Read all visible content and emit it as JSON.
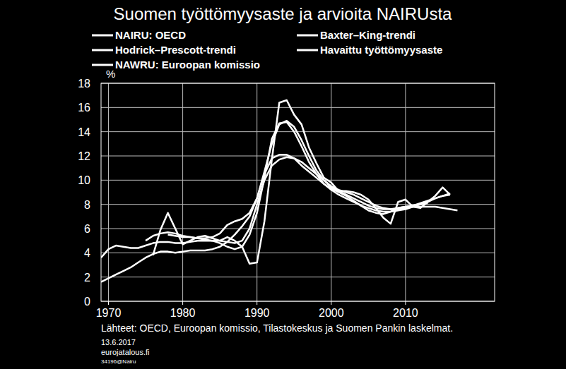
{
  "chart_data": {
    "type": "line",
    "title": "Suomen työttömyysaste ja arvioita NAIRUsta",
    "y_label": "%",
    "source": "Lähteet: OECD, Euroopan komissio, Tilastokeskus ja Suomen Pankin laskelmat.",
    "footer": [
      "13.6.2017",
      "eurojatalous.fi",
      "34196@Nairu"
    ],
    "x": [
      1969,
      1970,
      1971,
      1972,
      1973,
      1974,
      1975,
      1976,
      1977,
      1978,
      1979,
      1980,
      1981,
      1982,
      1983,
      1984,
      1985,
      1986,
      1987,
      1988,
      1989,
      1990,
      1991,
      1992,
      1993,
      1994,
      1995,
      1996,
      1997,
      1998,
      1999,
      2000,
      2001,
      2002,
      2003,
      2004,
      2005,
      2006,
      2007,
      2008,
      2009,
      2010,
      2011,
      2012,
      2013,
      2014,
      2015,
      2016,
      2017
    ],
    "series": [
      {
        "name": "NAIRU: OECD",
        "color": "#ffffff",
        "values": [
          3.6,
          4.3,
          4.6,
          4.5,
          4.4,
          4.4,
          4.6,
          4.8,
          4.9,
          4.9,
          4.8,
          4.8,
          4.9,
          5.0,
          5.0,
          5.0,
          5.0,
          4.9,
          4.8,
          5.0,
          6.0,
          8.0,
          10.0,
          11.2,
          11.7,
          11.9,
          11.8,
          11.5,
          11.0,
          10.5,
          10.0,
          9.5,
          9.2,
          9.0,
          8.8,
          8.5,
          8.2,
          7.9,
          7.7,
          7.6,
          7.6,
          7.7,
          7.8,
          7.8,
          7.8,
          7.8,
          7.7,
          7.6,
          7.5
        ]
      },
      {
        "name": "Baxter–King-trendi",
        "color": "#ffffff",
        "values": [
          null,
          null,
          null,
          null,
          null,
          null,
          null,
          null,
          null,
          5.5,
          5.4,
          5.3,
          5.3,
          5.2,
          5.1,
          5.0,
          4.8,
          4.5,
          4.3,
          4.5,
          5.5,
          7.3,
          10.2,
          13.4,
          14.7,
          14.8,
          14.0,
          12.8,
          11.5,
          10.5,
          9.7,
          9.3,
          9.0,
          8.7,
          8.3,
          7.9,
          7.5,
          7.3,
          7.2,
          7.4,
          7.7,
          7.8,
          7.9,
          8.0,
          8.1,
          null,
          null,
          null,
          null
        ]
      },
      {
        "name": "Hodrick–Prescott-trendi",
        "color": "#ffffff",
        "values": [
          null,
          null,
          null,
          null,
          null,
          null,
          5.0,
          5.4,
          5.6,
          5.7,
          5.6,
          5.4,
          5.3,
          5.2,
          5.2,
          5.3,
          5.6,
          6.3,
          6.6,
          6.8,
          7.3,
          8.5,
          10.7,
          13.0,
          14.6,
          14.9,
          14.4,
          13.3,
          12.0,
          10.8,
          10.0,
          9.4,
          9.1,
          8.8,
          8.5,
          8.2,
          7.9,
          7.7,
          7.6,
          7.6,
          7.7,
          7.8,
          7.9,
          8.1,
          8.3,
          8.5,
          8.7,
          8.9,
          null
        ]
      },
      {
        "name": "Havaittu työttömyysaste",
        "color": "#ffffff",
        "values": [
          null,
          null,
          null,
          null,
          null,
          null,
          null,
          3.8,
          5.9,
          7.3,
          6.0,
          4.7,
          5.0,
          5.3,
          5.4,
          5.2,
          5.0,
          5.3,
          5.0,
          4.5,
          3.1,
          3.2,
          6.6,
          11.7,
          16.4,
          16.6,
          15.4,
          14.6,
          12.7,
          11.4,
          10.2,
          9.8,
          9.1,
          9.1,
          9.0,
          8.8,
          8.4,
          7.7,
          6.9,
          6.4,
          8.2,
          8.4,
          7.8,
          7.7,
          8.2,
          8.7,
          9.4,
          8.8,
          null
        ]
      },
      {
        "name": "NAWRU: Euroopan komissio",
        "color": "#ffffff",
        "values": [
          1.6,
          1.9,
          2.2,
          2.5,
          2.8,
          3.2,
          3.6,
          3.9,
          4.1,
          4.1,
          4.0,
          4.1,
          4.2,
          4.2,
          4.2,
          4.3,
          4.5,
          4.9,
          5.5,
          6.2,
          7.0,
          8.5,
          10.5,
          11.8,
          12.1,
          12.1,
          11.8,
          11.2,
          10.7,
          10.2,
          9.7,
          9.2,
          8.8,
          8.5,
          8.2,
          7.9,
          7.7,
          7.5,
          7.4,
          7.4,
          7.5,
          7.6,
          7.8,
          8.0,
          8.2,
          8.5,
          8.7,
          8.8,
          null
        ]
      }
    ],
    "xlim": [
      1969,
      2022
    ],
    "xticks": [
      1970,
      1980,
      1990,
      2000,
      2010
    ],
    "ylim": [
      0,
      18
    ],
    "yticks": [
      0,
      2,
      4,
      6,
      8,
      10,
      12,
      14,
      16,
      18
    ],
    "grid": true,
    "legend": "top"
  }
}
